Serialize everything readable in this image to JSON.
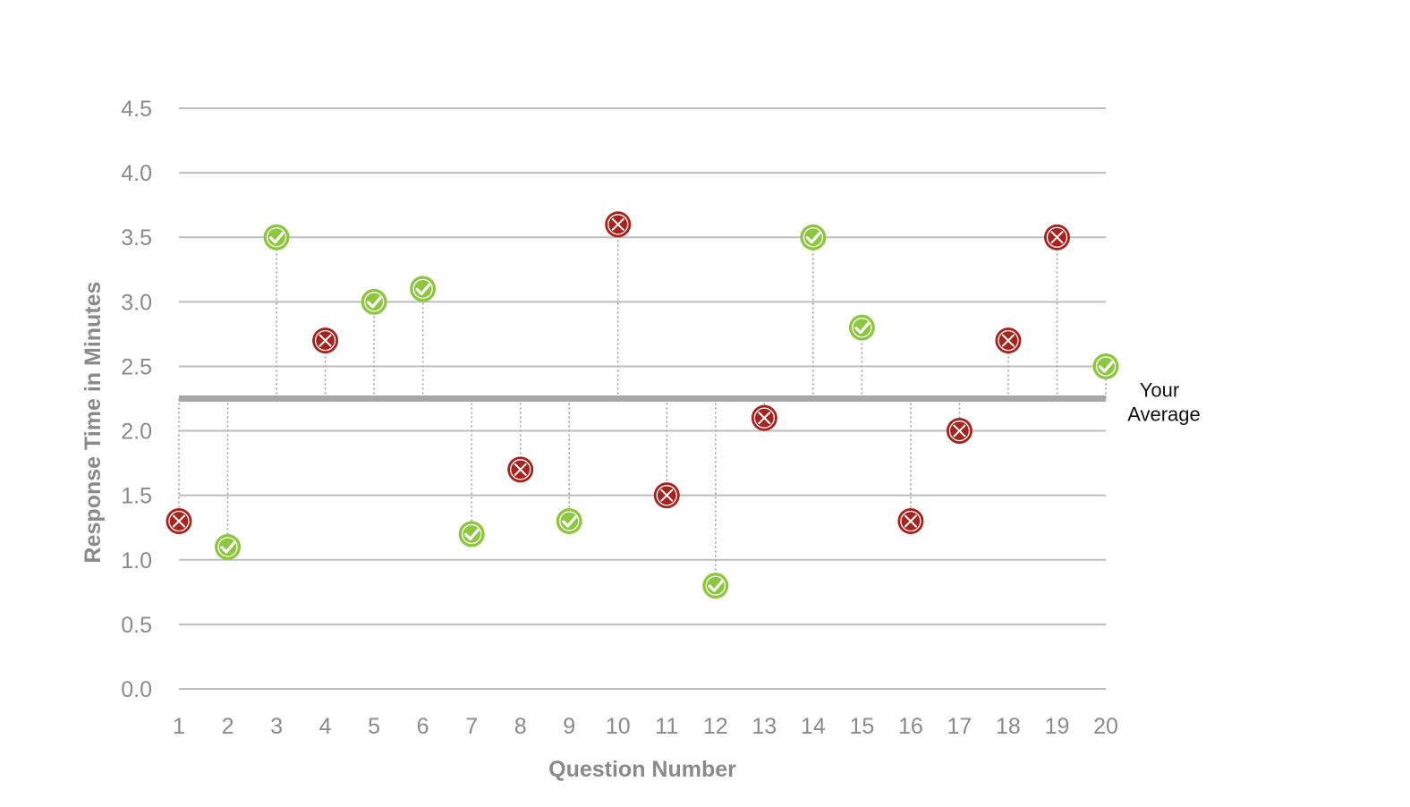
{
  "chart_data": {
    "type": "scatter",
    "xlabel": "Question Number",
    "ylabel": "Response Time in Minutes",
    "xlim": [
      1,
      20
    ],
    "ylim": [
      0,
      4.5
    ],
    "x_ticks": [
      1,
      2,
      3,
      4,
      5,
      6,
      7,
      8,
      9,
      10,
      11,
      12,
      13,
      14,
      15,
      16,
      17,
      18,
      19,
      20
    ],
    "y_ticks": [
      "0.0",
      "0.5",
      "1.0",
      "1.5",
      "2.0",
      "2.5",
      "3.0",
      "3.5",
      "4.0",
      "4.5"
    ],
    "grid": "horizontal",
    "reference_line": {
      "label_line1": "Your",
      "label_line2": "Average",
      "value": 2.25,
      "color": "#a6a6a6"
    },
    "colors": {
      "correct": "#8dc63f",
      "incorrect": "#a8231d",
      "grid": "#bdbdbd",
      "stem": "#9a9a9a"
    },
    "points": [
      {
        "x": 1,
        "y": 1.3,
        "result": "incorrect"
      },
      {
        "x": 2,
        "y": 1.1,
        "result": "correct"
      },
      {
        "x": 3,
        "y": 3.5,
        "result": "correct"
      },
      {
        "x": 4,
        "y": 2.7,
        "result": "incorrect"
      },
      {
        "x": 5,
        "y": 3.0,
        "result": "correct"
      },
      {
        "x": 6,
        "y": 3.1,
        "result": "correct"
      },
      {
        "x": 7,
        "y": 1.2,
        "result": "correct"
      },
      {
        "x": 8,
        "y": 1.7,
        "result": "incorrect"
      },
      {
        "x": 9,
        "y": 1.3,
        "result": "correct"
      },
      {
        "x": 10,
        "y": 3.6,
        "result": "incorrect"
      },
      {
        "x": 11,
        "y": 1.5,
        "result": "incorrect"
      },
      {
        "x": 12,
        "y": 0.8,
        "result": "correct"
      },
      {
        "x": 13,
        "y": 2.1,
        "result": "incorrect"
      },
      {
        "x": 14,
        "y": 3.5,
        "result": "correct"
      },
      {
        "x": 15,
        "y": 2.8,
        "result": "correct"
      },
      {
        "x": 16,
        "y": 1.3,
        "result": "incorrect"
      },
      {
        "x": 17,
        "y": 2.0,
        "result": "incorrect"
      },
      {
        "x": 18,
        "y": 2.7,
        "result": "incorrect"
      },
      {
        "x": 19,
        "y": 3.5,
        "result": "incorrect"
      },
      {
        "x": 20,
        "y": 2.5,
        "result": "correct"
      }
    ]
  }
}
